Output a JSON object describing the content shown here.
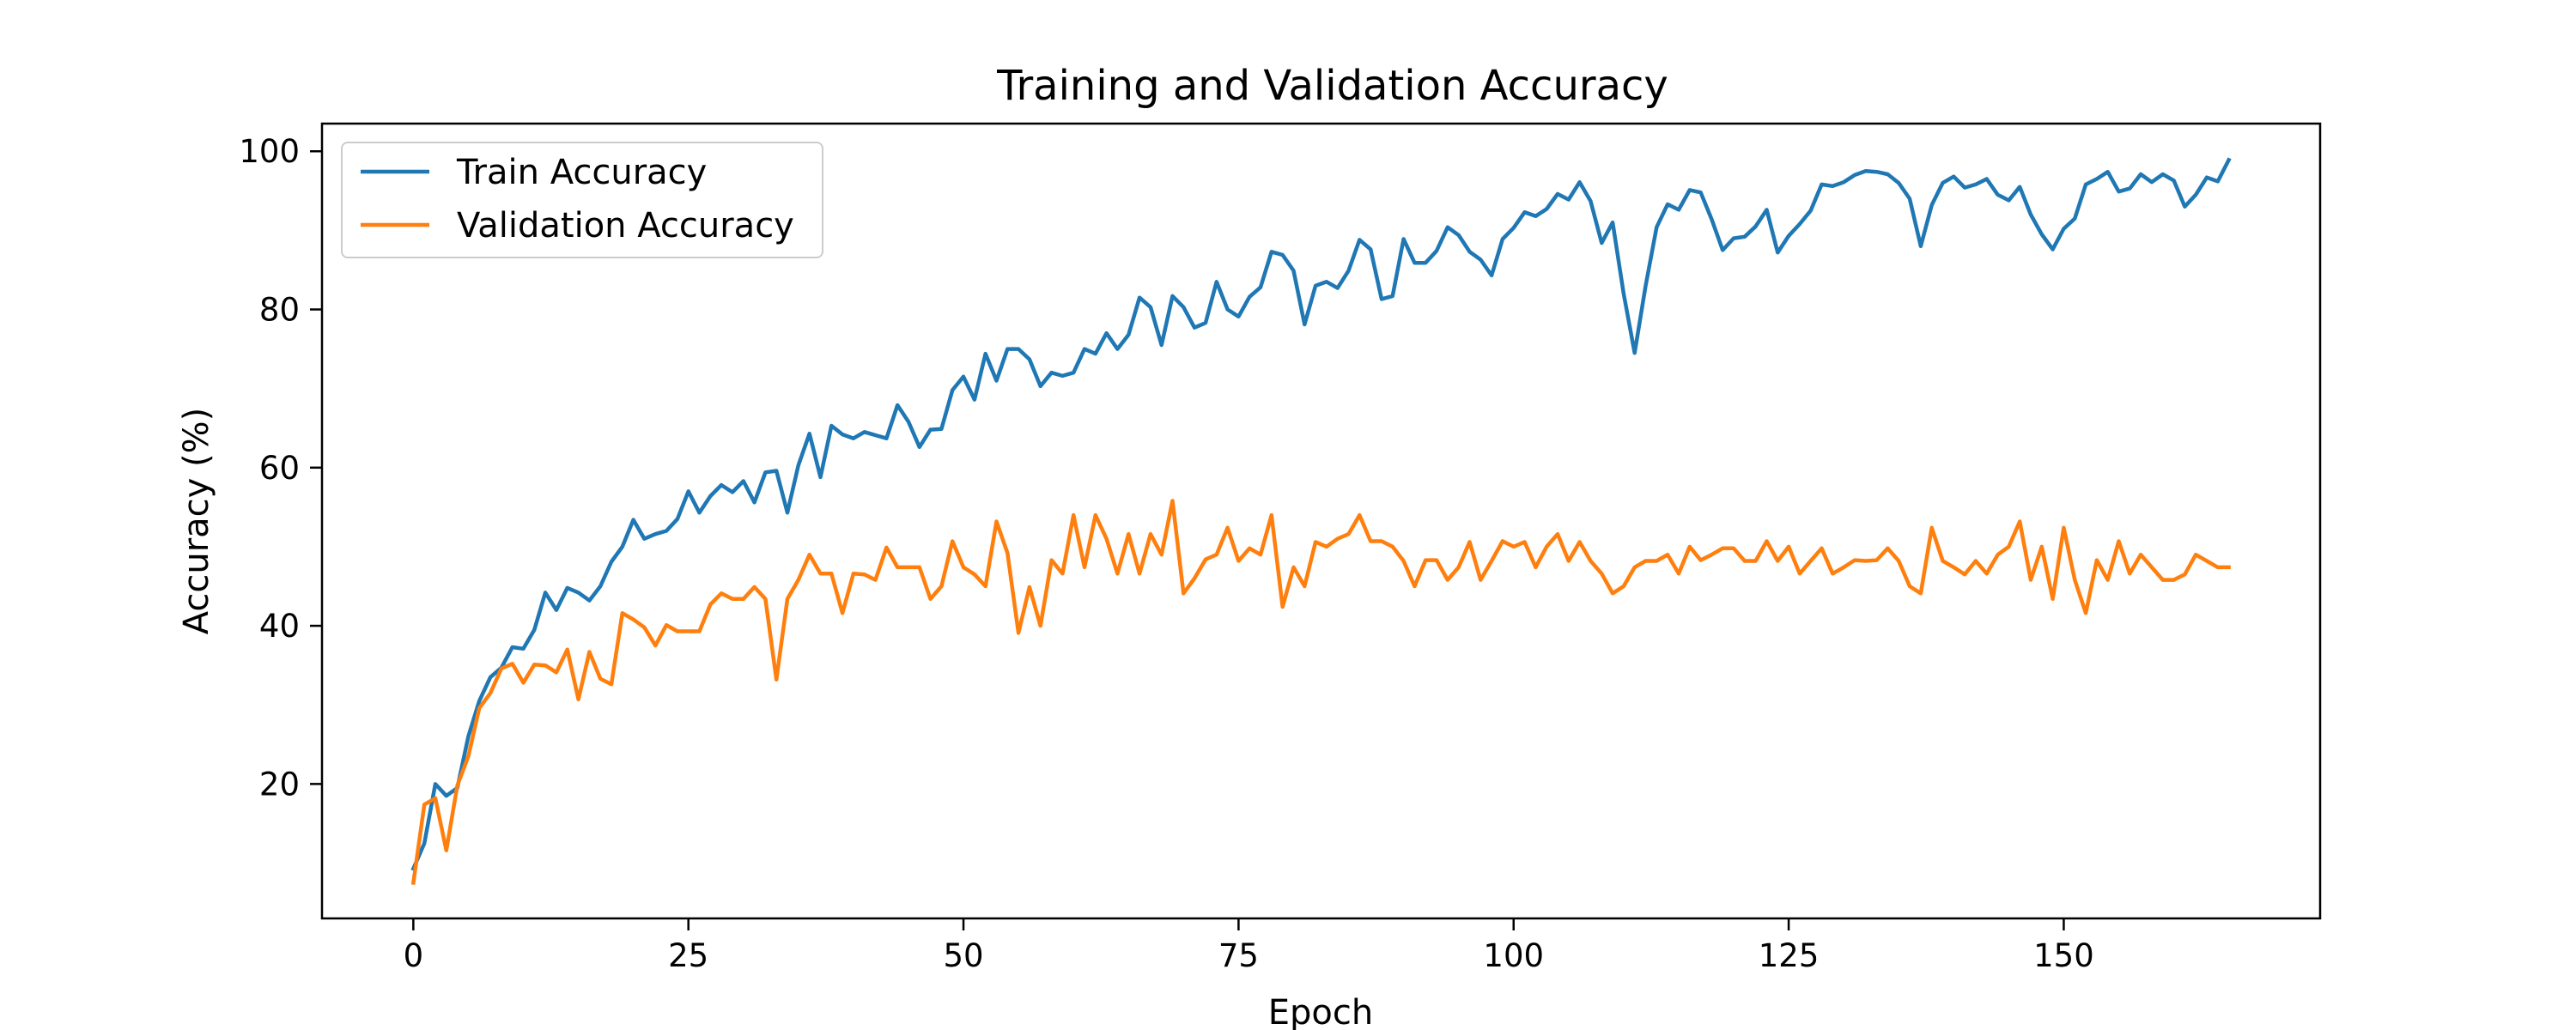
{
  "chart_data": {
    "type": "line",
    "title": "Training and Validation Accuracy",
    "xlabel": "Epoch",
    "ylabel": "Accuracy (%)",
    "xlim": [
      -8.3,
      173.3
    ],
    "ylim": [
      3.0,
      103.5
    ],
    "xticks": [
      0,
      25,
      50,
      75,
      100,
      125,
      150
    ],
    "yticks": [
      20,
      40,
      60,
      80,
      100
    ],
    "grid": false,
    "legend_position": "upper-left",
    "series": [
      {
        "name": "Train Accuracy",
        "color": "#1f77b4",
        "values": [
          9.3,
          12.5,
          20.0,
          18.5,
          19.5,
          26.0,
          30.5,
          33.5,
          34.7,
          37.3,
          37.1,
          39.5,
          44.2,
          42.0,
          44.8,
          44.2,
          43.2,
          45.0,
          48.1,
          50.0,
          53.4,
          51.0,
          51.6,
          52.0,
          53.5,
          57.0,
          54.3,
          56.4,
          57.8,
          56.9,
          58.3,
          55.6,
          59.4,
          59.6,
          54.3,
          60.3,
          64.3,
          58.8,
          65.3,
          64.2,
          63.7,
          64.5,
          64.1,
          63.7,
          67.9,
          65.8,
          62.6,
          64.8,
          64.9,
          69.8,
          71.5,
          68.6,
          74.4,
          71.0,
          75.0,
          75.0,
          73.7,
          70.3,
          72.0,
          71.6,
          72.0,
          75.0,
          74.4,
          77.0,
          75.0,
          76.8,
          81.5,
          80.3,
          75.5,
          81.7,
          80.3,
          77.7,
          78.3,
          83.5,
          80.0,
          79.1,
          81.6,
          82.8,
          87.3,
          86.9,
          84.9,
          78.1,
          83.0,
          83.5,
          82.7,
          84.9,
          88.8,
          87.6,
          81.3,
          81.7,
          88.9,
          85.9,
          85.9,
          87.4,
          90.4,
          89.4,
          87.3,
          86.3,
          84.3,
          88.9,
          90.3,
          92.3,
          91.8,
          92.7,
          94.6,
          93.9,
          96.1,
          93.7,
          88.4,
          91.0,
          82.0,
          74.5,
          83.0,
          90.4,
          93.3,
          92.6,
          95.1,
          94.8,
          91.4,
          87.5,
          89.0,
          89.2,
          90.5,
          92.6,
          87.2,
          89.3,
          90.8,
          92.5,
          95.8,
          95.6,
          96.1,
          97.0,
          97.5,
          97.4,
          97.1,
          96.0,
          94.0,
          88.0,
          93.2,
          96.0,
          96.8,
          95.4,
          95.8,
          96.5,
          94.5,
          93.8,
          95.5,
          92.0,
          89.5,
          87.6,
          90.2,
          91.5,
          95.8,
          96.5,
          97.4,
          94.9,
          95.3,
          97.1,
          96.1,
          97.1,
          96.3,
          93.0,
          94.5,
          96.7,
          96.2,
          98.9
        ]
      },
      {
        "name": "Validation Accuracy",
        "color": "#ff7f0e",
        "values": [
          7.5,
          17.4,
          18.2,
          11.6,
          19.8,
          23.5,
          29.6,
          31.5,
          34.6,
          35.2,
          32.8,
          35.1,
          35.0,
          34.1,
          37.0,
          30.7,
          36.7,
          33.3,
          32.6,
          41.6,
          40.8,
          39.8,
          37.5,
          40.1,
          39.3,
          39.3,
          39.3,
          42.7,
          44.1,
          43.4,
          43.4,
          44.9,
          43.4,
          33.2,
          43.4,
          45.8,
          49.0,
          46.6,
          46.6,
          41.6,
          46.6,
          46.5,
          45.8,
          49.9,
          47.4,
          47.4,
          47.4,
          43.4,
          45.0,
          50.7,
          47.4,
          46.5,
          45.0,
          53.2,
          49.2,
          39.1,
          44.9,
          40.0,
          48.3,
          46.6,
          54.0,
          47.4,
          54.0,
          51.0,
          46.6,
          51.6,
          46.6,
          51.6,
          49.0,
          55.8,
          44.1,
          46.0,
          48.4,
          49.0,
          52.4,
          48.2,
          49.8,
          49.0,
          54.0,
          42.4,
          47.4,
          45.0,
          50.6,
          50.0,
          51.0,
          51.6,
          54.0,
          50.7,
          50.7,
          50.0,
          48.2,
          45.0,
          48.3,
          48.3,
          45.8,
          47.4,
          50.6,
          45.8,
          48.2,
          50.7,
          50.0,
          50.6,
          47.4,
          50.0,
          51.6,
          48.2,
          50.6,
          48.2,
          46.6,
          44.1,
          45.0,
          47.4,
          48.2,
          48.2,
          49.0,
          46.6,
          50.0,
          48.3,
          49.0,
          49.8,
          49.8,
          48.2,
          48.2,
          50.7,
          48.2,
          50.0,
          46.6,
          48.2,
          49.8,
          46.6,
          47.4,
          48.3,
          48.2,
          48.3,
          49.8,
          48.2,
          45.0,
          44.1,
          52.4,
          48.2,
          47.4,
          46.5,
          48.2,
          46.6,
          49.0,
          50.0,
          53.2,
          45.8,
          50.0,
          43.4,
          52.4,
          45.8,
          41.6,
          48.3,
          45.8,
          50.7,
          46.6,
          49.0,
          47.4,
          45.8,
          45.8,
          46.5,
          49.0,
          48.2,
          47.4,
          47.4
        ]
      }
    ]
  }
}
